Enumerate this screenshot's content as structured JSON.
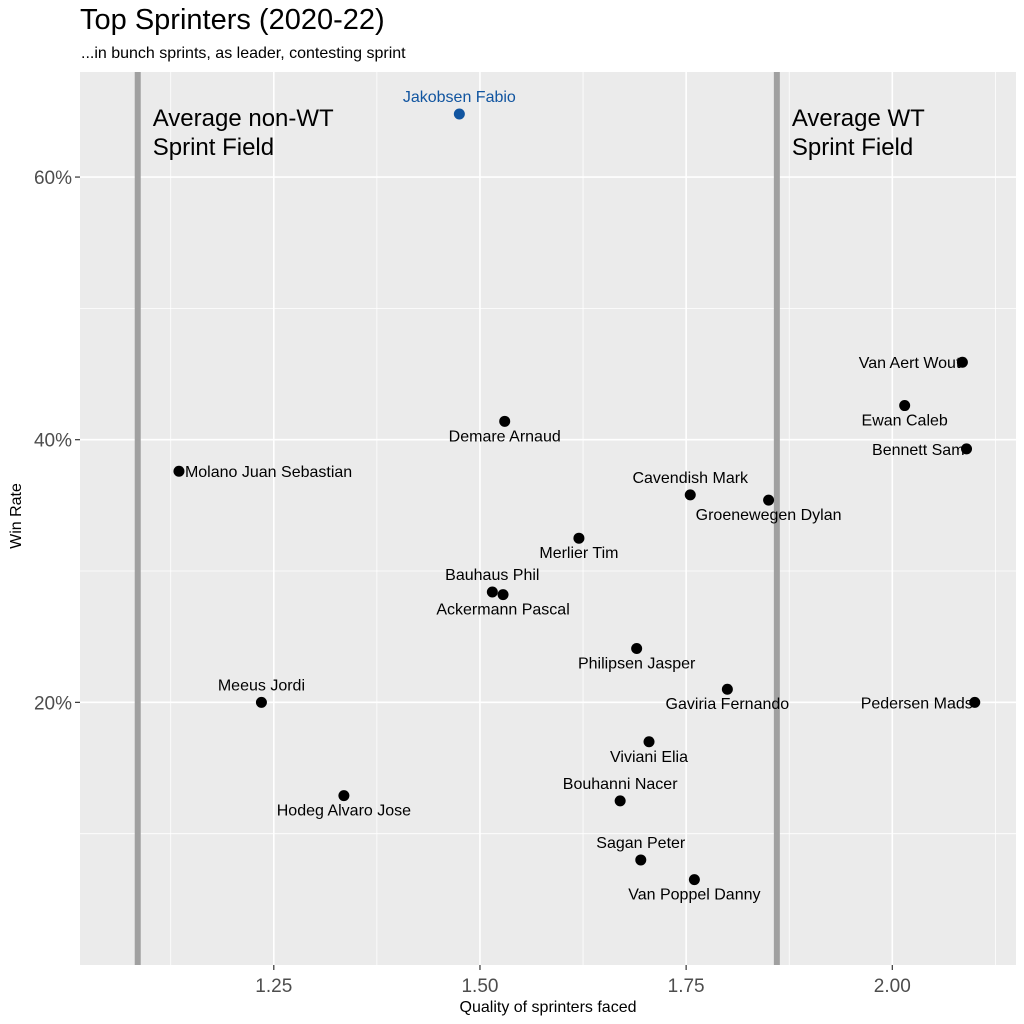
{
  "chart_data": {
    "type": "scatter",
    "title": "Top Sprinters (2020-22)",
    "subtitle": "...in bunch sprints, as leader, contesting sprint",
    "xlabel": "Quality of sprinters faced",
    "ylabel": "Win Rate",
    "xlim": [
      1.015,
      2.15
    ],
    "ylim": [
      0.0,
      0.68
    ],
    "x_ticks": [
      1.25,
      1.5,
      1.75,
      2.0
    ],
    "x_tick_labels": [
      "1.25",
      "1.50",
      "1.75",
      "2.00"
    ],
    "y_ticks": [
      0.2,
      0.4,
      0.6
    ],
    "y_tick_labels": [
      "20%",
      "40%",
      "60%"
    ],
    "grid": true,
    "legend": "none",
    "colors": {
      "point": "#000000",
      "highlight": "#1155a0",
      "reference_line": "#a0a0a0",
      "panel": "#ebebeb",
      "grid": "#ffffff"
    },
    "reference_lines": [
      {
        "x": 1.085,
        "label_line1": "Average non-WT",
        "label_line2": "Sprint Field"
      },
      {
        "x": 1.86,
        "label_line1": "Average WT",
        "label_line2": "Sprint Field"
      }
    ],
    "points": [
      {
        "name": "Jakobsen Fabio",
        "x": 1.475,
        "y": 0.648,
        "highlight": true,
        "label_pos": "above"
      },
      {
        "name": "Van Aert Wout",
        "x": 2.085,
        "y": 0.459,
        "label_pos": "left"
      },
      {
        "name": "Ewan Caleb",
        "x": 2.015,
        "y": 0.426,
        "label_pos": "below"
      },
      {
        "name": "Bennett Sam",
        "x": 2.09,
        "y": 0.393,
        "label_pos": "left"
      },
      {
        "name": "Demare Arnaud",
        "x": 1.53,
        "y": 0.414,
        "label_pos": "below"
      },
      {
        "name": "Molano Juan Sebastian",
        "x": 1.135,
        "y": 0.376,
        "label_pos": "right"
      },
      {
        "name": "Cavendish Mark",
        "x": 1.755,
        "y": 0.358,
        "label_pos": "above"
      },
      {
        "name": "Groenewegen Dylan",
        "x": 1.85,
        "y": 0.354,
        "label_pos": "below"
      },
      {
        "name": "Merlier Tim",
        "x": 1.62,
        "y": 0.325,
        "label_pos": "below"
      },
      {
        "name": "Bauhaus Phil",
        "x": 1.515,
        "y": 0.284,
        "label_pos": "above"
      },
      {
        "name": "Ackermann Pascal",
        "x": 1.528,
        "y": 0.282,
        "label_pos": "below"
      },
      {
        "name": "Philipsen Jasper",
        "x": 1.69,
        "y": 0.241,
        "label_pos": "below"
      },
      {
        "name": "Gaviria Fernando",
        "x": 1.8,
        "y": 0.21,
        "label_pos": "below"
      },
      {
        "name": "Pedersen Mads",
        "x": 2.1,
        "y": 0.2,
        "label_pos": "left"
      },
      {
        "name": "Meeus Jordi",
        "x": 1.235,
        "y": 0.2,
        "label_pos": "above"
      },
      {
        "name": "Viviani Elia",
        "x": 1.705,
        "y": 0.17,
        "label_pos": "below"
      },
      {
        "name": "Bouhanni Nacer",
        "x": 1.67,
        "y": 0.125,
        "label_pos": "above"
      },
      {
        "name": "Hodeg Alvaro Jose",
        "x": 1.335,
        "y": 0.129,
        "label_pos": "below"
      },
      {
        "name": "Sagan Peter",
        "x": 1.695,
        "y": 0.08,
        "label_pos": "above"
      },
      {
        "name": "Van Poppel Danny",
        "x": 1.76,
        "y": 0.065,
        "label_pos": "below"
      }
    ]
  }
}
